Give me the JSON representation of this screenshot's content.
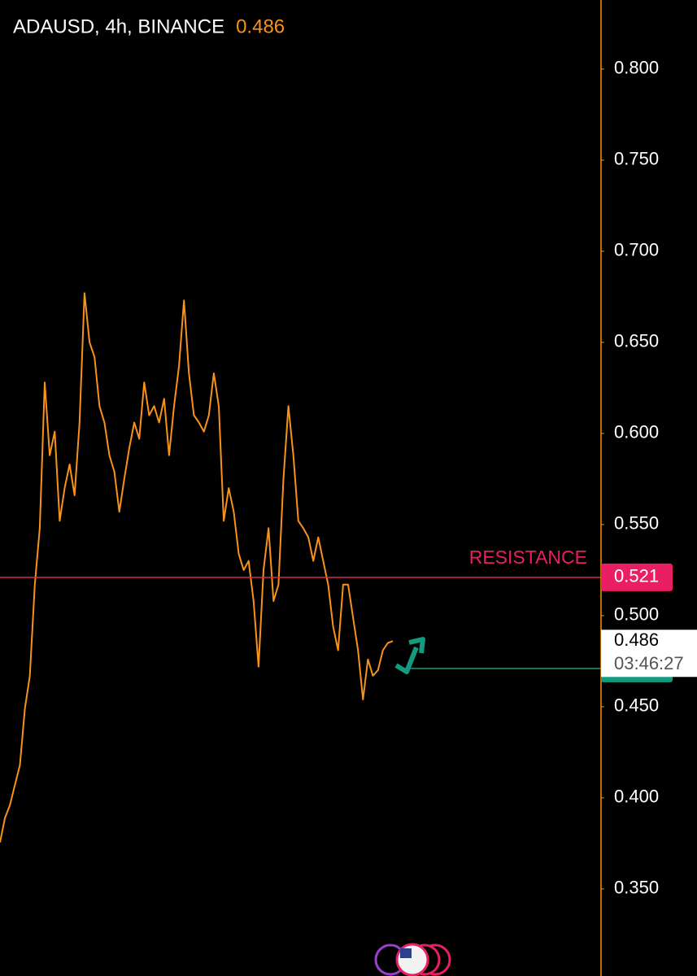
{
  "chart_data": {
    "type": "line",
    "title": "ADAUSD, 4h, BINANCE",
    "last_price": 0.486,
    "countdown": "03:46:27",
    "color": "#f7931a",
    "values": [
      0.3755,
      0.389,
      0.396,
      0.407,
      0.418,
      0.449,
      0.467,
      0.517,
      0.548,
      0.628,
      0.588,
      0.601,
      0.552,
      0.57,
      0.583,
      0.566,
      0.606,
      0.677,
      0.65,
      0.642,
      0.615,
      0.606,
      0.588,
      0.579,
      0.557,
      0.575,
      0.592,
      0.606,
      0.597,
      0.628,
      0.61,
      0.615,
      0.606,
      0.619,
      0.588,
      0.615,
      0.637,
      0.673,
      0.633,
      0.61,
      0.606,
      0.601,
      0.61,
      0.633,
      0.615,
      0.552,
      0.57,
      0.557,
      0.534,
      0.525,
      0.53,
      0.508,
      0.472,
      0.525,
      0.548,
      0.508,
      0.517,
      0.575,
      0.615,
      0.588,
      0.552,
      0.548,
      0.543,
      0.53,
      0.543,
      0.53,
      0.517,
      0.494,
      0.481,
      0.517,
      0.517,
      0.499,
      0.481,
      0.454,
      0.476,
      0.467,
      0.47,
      0.481,
      0.485,
      0.486
    ],
    "ylim": [
      0.3022,
      0.8379
    ],
    "yticks": [
      {
        "value": 0.35,
        "label": "0.350"
      },
      {
        "value": 0.4,
        "label": "0.400"
      },
      {
        "value": 0.45,
        "label": "0.450"
      },
      {
        "value": 0.5,
        "label": "0.500"
      },
      {
        "value": 0.55,
        "label": "0.550"
      },
      {
        "value": 0.6,
        "label": "0.600"
      },
      {
        "value": 0.65,
        "label": "0.650"
      },
      {
        "value": 0.7,
        "label": "0.700"
      },
      {
        "value": 0.75,
        "label": "0.750"
      },
      {
        "value": 0.8,
        "label": "0.800"
      }
    ],
    "levels": [
      {
        "label": "RESISTANCE",
        "value": 0.521,
        "color": "#e91e63"
      },
      {
        "value": 0.471,
        "color": "#129b7f"
      }
    ]
  }
}
